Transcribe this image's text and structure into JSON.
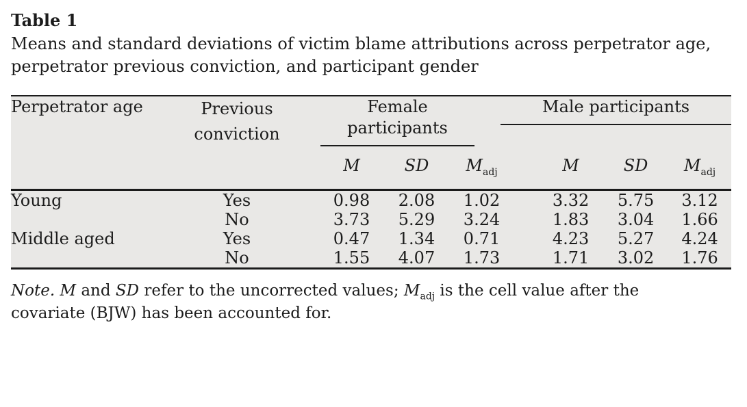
{
  "title": "Table 1",
  "caption": {
    "line1": "Means and standard deviations of victim blame attributions across perpetrator age,",
    "line2": "perpetrator previous conviction, and participant gender"
  },
  "table": {
    "col_perpetrator_age": "Perpetrator age",
    "col_previous_conviction": "Previous conviction",
    "group_female": "Female participants",
    "group_male": "Male participants",
    "sub_m": "M",
    "sub_sd": "SD",
    "sub_madj_base": "M",
    "sub_madj_sub": "adj",
    "rows": [
      {
        "age": "Young",
        "conviction": "Yes",
        "female": {
          "m": "0.98",
          "sd": "2.08",
          "madj": "1.02"
        },
        "male": {
          "m": "3.32",
          "sd": "5.75",
          "madj": "3.12"
        }
      },
      {
        "age": "",
        "conviction": "No",
        "female": {
          "m": "3.73",
          "sd": "5.29",
          "madj": "3.24"
        },
        "male": {
          "m": "1.83",
          "sd": "3.04",
          "madj": "1.66"
        }
      },
      {
        "age": "Middle aged",
        "conviction": "Yes",
        "female": {
          "m": "0.47",
          "sd": "1.34",
          "madj": "0.71"
        },
        "male": {
          "m": "4.23",
          "sd": "5.27",
          "madj": "4.24"
        }
      },
      {
        "age": "",
        "conviction": "No",
        "female": {
          "m": "1.55",
          "sd": "4.07",
          "madj": "1.73"
        },
        "male": {
          "m": "1.71",
          "sd": "3.02",
          "madj": "1.76"
        }
      }
    ]
  },
  "note": {
    "segments": [
      {
        "t": "Note.",
        "i": true
      },
      {
        "t": " "
      },
      {
        "t": "M",
        "i": true
      },
      {
        "t": " and "
      },
      {
        "t": "SD",
        "i": true
      },
      {
        "t": " refer to the uncorrected values; "
      },
      {
        "t": "M",
        "i": true
      },
      {
        "t": "adj",
        "sub": true
      },
      {
        "t": " is the cell value after the"
      },
      {
        "br": true
      },
      {
        "t": "covariate (BJW) has been accounted for."
      }
    ]
  },
  "colors": {
    "table_background": "#e9e8e6",
    "rule": "#1b1b1b",
    "text": "#1c1c1c",
    "page_background": "#ffffff"
  }
}
